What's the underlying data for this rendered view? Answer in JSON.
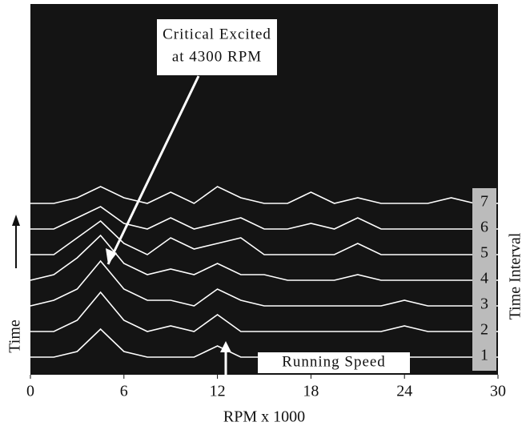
{
  "chart_data": {
    "type": "waterfall",
    "x_label": "RPM x 1000",
    "y_label": "Time",
    "right_label": "Time Interval",
    "annotations": [
      "Critical Excited",
      "at 4300 RPM",
      "Running Speed"
    ],
    "xlim": [
      0,
      30
    ],
    "xticks": [
      0,
      6,
      12,
      18,
      24,
      30
    ],
    "amplitude_lim": [
      0,
      10
    ],
    "x": [
      0,
      1.5,
      3,
      4.5,
      6,
      7.5,
      9,
      10.5,
      12,
      13.5,
      15,
      16.5,
      18,
      19.5,
      21,
      22.5,
      24,
      25.5,
      27,
      28.5,
      30
    ],
    "series": [
      {
        "name": "1",
        "color": "#ffffff",
        "values": [
          1,
          1,
          2,
          6,
          2,
          1,
          1,
          1,
          3,
          1,
          1,
          1,
          1,
          1,
          1,
          1,
          1,
          1,
          1,
          1,
          1
        ]
      },
      {
        "name": "2",
        "color": "#ffffff",
        "values": [
          1,
          1,
          3,
          8,
          3,
          1,
          2,
          1,
          4,
          1,
          1,
          1,
          1,
          1,
          1,
          1,
          2,
          1,
          1,
          1,
          1
        ]
      },
      {
        "name": "3",
        "color": "#ffffff",
        "values": [
          1,
          2,
          4,
          9,
          4,
          2,
          2,
          1,
          4,
          2,
          1,
          1,
          1,
          1,
          1,
          1,
          2,
          1,
          1,
          1,
          1
        ]
      },
      {
        "name": "4",
        "color": "#ffffff",
        "values": [
          1,
          2,
          5,
          9,
          4,
          2,
          3,
          2,
          4,
          2,
          2,
          1,
          1,
          1,
          2,
          1,
          1,
          1,
          1,
          1,
          1
        ]
      },
      {
        "name": "5",
        "color": "#ffffff",
        "values": [
          1,
          1,
          4,
          7,
          3,
          1,
          4,
          2,
          3,
          4,
          1,
          1,
          1,
          1,
          3,
          1,
          1,
          1,
          1,
          1,
          1
        ]
      },
      {
        "name": "6",
        "color": "#ffffff",
        "values": [
          1,
          1,
          3,
          5,
          2,
          1,
          3,
          1,
          2,
          3,
          1,
          1,
          2,
          1,
          3,
          1,
          1,
          1,
          1,
          1,
          1
        ]
      },
      {
        "name": "7",
        "color": "#ffffff",
        "values": [
          1,
          1,
          2,
          4,
          2,
          1,
          3,
          1,
          4,
          2,
          1,
          1,
          3,
          1,
          2,
          1,
          1,
          1,
          2,
          1,
          1
        ]
      }
    ],
    "background": "#141414"
  }
}
